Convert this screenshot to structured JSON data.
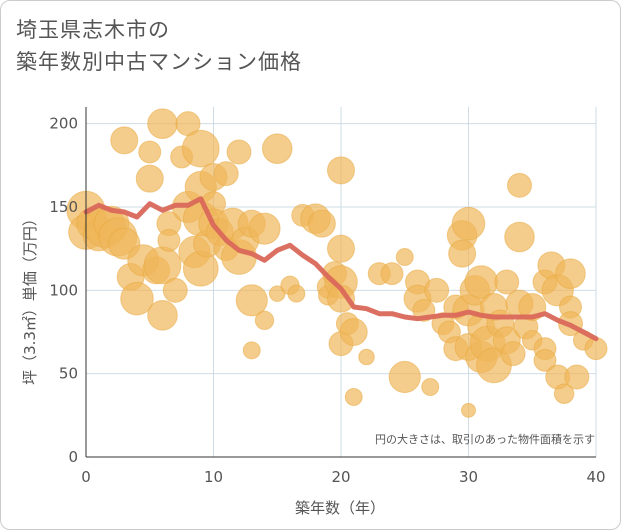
{
  "header": {
    "title_line1": "埼玉県志木市の",
    "title_line2": "築年数別中古マンション価格"
  },
  "colors": {
    "bubble": "#f0b75a",
    "bubble_stroke": "#e8a83c",
    "line": "#d9685a",
    "grid": "#cfdce6",
    "axis": "#333333"
  },
  "chart_data": {
    "type": "scatter",
    "xlabel": "築年数（年）",
    "ylabel": "坪（3.3㎡）単価（万円）",
    "xlim": [
      0,
      40
    ],
    "ylim": [
      0,
      210
    ],
    "x_ticks": [
      "0",
      "10",
      "20",
      "30",
      "40"
    ],
    "y_ticks": [
      "0",
      "50",
      "100",
      "150",
      "200"
    ],
    "x_tick_values": [
      0,
      10,
      20,
      30,
      40
    ],
    "y_tick_values": [
      0,
      50,
      100,
      150,
      200
    ],
    "grid": true,
    "note": "円の大きさは、取引のあった物件面積を示す",
    "bubbles": [
      {
        "x": 0,
        "y": 148,
        "s": 3
      },
      {
        "x": 0,
        "y": 135,
        "s": 2.5
      },
      {
        "x": 0.5,
        "y": 140,
        "s": 2
      },
      {
        "x": 1,
        "y": 133,
        "s": 2
      },
      {
        "x": 1.5,
        "y": 138,
        "s": 3.5
      },
      {
        "x": 2,
        "y": 140,
        "s": 2.5
      },
      {
        "x": 2.5,
        "y": 132,
        "s": 3
      },
      {
        "x": 3,
        "y": 190,
        "s": 1.5
      },
      {
        "x": 3,
        "y": 128,
        "s": 2
      },
      {
        "x": 3.5,
        "y": 108,
        "s": 1.5
      },
      {
        "x": 4,
        "y": 95,
        "s": 2.2
      },
      {
        "x": 4.5,
        "y": 118,
        "s": 2
      },
      {
        "x": 5,
        "y": 167,
        "s": 1.5
      },
      {
        "x": 5,
        "y": 183,
        "s": 1
      },
      {
        "x": 5.5,
        "y": 112,
        "s": 1.5
      },
      {
        "x": 6,
        "y": 115,
        "s": 2.8
      },
      {
        "x": 6,
        "y": 85,
        "s": 1.8
      },
      {
        "x": 6,
        "y": 200,
        "s": 1.8
      },
      {
        "x": 6.5,
        "y": 140,
        "s": 1.2
      },
      {
        "x": 6.5,
        "y": 130,
        "s": 1
      },
      {
        "x": 7,
        "y": 100,
        "s": 1.2
      },
      {
        "x": 7.5,
        "y": 180,
        "s": 1
      },
      {
        "x": 8,
        "y": 200,
        "s": 1.2
      },
      {
        "x": 8,
        "y": 150,
        "s": 2
      },
      {
        "x": 8.5,
        "y": 123,
        "s": 2
      },
      {
        "x": 9,
        "y": 185,
        "s": 2.8
      },
      {
        "x": 9,
        "y": 162,
        "s": 2
      },
      {
        "x": 9,
        "y": 143,
        "s": 2.5
      },
      {
        "x": 9,
        "y": 113,
        "s": 2.5
      },
      {
        "x": 9.5,
        "y": 128,
        "s": 1.5
      },
      {
        "x": 10,
        "y": 168,
        "s": 1.5
      },
      {
        "x": 10,
        "y": 152,
        "s": 1.2
      },
      {
        "x": 10,
        "y": 140,
        "s": 1.8
      },
      {
        "x": 10.5,
        "y": 135,
        "s": 1.5
      },
      {
        "x": 11,
        "y": 170,
        "s": 1.2
      },
      {
        "x": 11,
        "y": 125,
        "s": 1.2
      },
      {
        "x": 11.5,
        "y": 140,
        "s": 2
      },
      {
        "x": 12,
        "y": 183,
        "s": 1.2
      },
      {
        "x": 12,
        "y": 120,
        "s": 2.5
      },
      {
        "x": 12.5,
        "y": 130,
        "s": 1.5
      },
      {
        "x": 13,
        "y": 94,
        "s": 2
      },
      {
        "x": 13,
        "y": 140,
        "s": 1.5
      },
      {
        "x": 13,
        "y": 64,
        "s": 0.6
      },
      {
        "x": 14,
        "y": 137,
        "s": 2
      },
      {
        "x": 14,
        "y": 82,
        "s": 0.7
      },
      {
        "x": 15,
        "y": 185,
        "s": 1.8
      },
      {
        "x": 15,
        "y": 98,
        "s": 0.5
      },
      {
        "x": 16,
        "y": 103,
        "s": 0.7
      },
      {
        "x": 16.5,
        "y": 98,
        "s": 0.6
      },
      {
        "x": 17,
        "y": 145,
        "s": 1
      },
      {
        "x": 18,
        "y": 143,
        "s": 1.8
      },
      {
        "x": 18.5,
        "y": 140,
        "s": 1.5
      },
      {
        "x": 19,
        "y": 102,
        "s": 1
      },
      {
        "x": 19,
        "y": 97,
        "s": 0.8
      },
      {
        "x": 19.5,
        "y": 110,
        "s": 1.2
      },
      {
        "x": 20,
        "y": 172,
        "s": 1.5
      },
      {
        "x": 20,
        "y": 125,
        "s": 1.5
      },
      {
        "x": 20,
        "y": 105,
        "s": 2.2
      },
      {
        "x": 20,
        "y": 95,
        "s": 1.5
      },
      {
        "x": 20,
        "y": 68,
        "s": 1.2
      },
      {
        "x": 20.5,
        "y": 80,
        "s": 1
      },
      {
        "x": 21,
        "y": 75,
        "s": 1.5
      },
      {
        "x": 21,
        "y": 36,
        "s": 0.6
      },
      {
        "x": 22,
        "y": 60,
        "s": 0.5
      },
      {
        "x": 23,
        "y": 110,
        "s": 1
      },
      {
        "x": 24,
        "y": 110,
        "s": 1
      },
      {
        "x": 25,
        "y": 48,
        "s": 2
      },
      {
        "x": 25,
        "y": 120,
        "s": 0.6
      },
      {
        "x": 26,
        "y": 105,
        "s": 1.2
      },
      {
        "x": 26,
        "y": 95,
        "s": 1.5
      },
      {
        "x": 26.5,
        "y": 88,
        "s": 1
      },
      {
        "x": 27,
        "y": 42,
        "s": 0.6
      },
      {
        "x": 27.5,
        "y": 100,
        "s": 1.2
      },
      {
        "x": 28,
        "y": 80,
        "s": 1
      },
      {
        "x": 28.5,
        "y": 75,
        "s": 1
      },
      {
        "x": 29,
        "y": 65,
        "s": 1.2
      },
      {
        "x": 29,
        "y": 90,
        "s": 1.2
      },
      {
        "x": 29.5,
        "y": 133,
        "s": 1.8
      },
      {
        "x": 29.5,
        "y": 122,
        "s": 1.5
      },
      {
        "x": 30,
        "y": 140,
        "s": 2.2
      },
      {
        "x": 30,
        "y": 28,
        "s": 0.4
      },
      {
        "x": 30,
        "y": 88,
        "s": 2
      },
      {
        "x": 30,
        "y": 66,
        "s": 1.5
      },
      {
        "x": 30.5,
        "y": 100,
        "s": 1.8
      },
      {
        "x": 31,
        "y": 105,
        "s": 2.2
      },
      {
        "x": 31,
        "y": 78,
        "s": 1.5
      },
      {
        "x": 31,
        "y": 60,
        "s": 2
      },
      {
        "x": 31.5,
        "y": 68,
        "s": 2.5
      },
      {
        "x": 32,
        "y": 55,
        "s": 2.5
      },
      {
        "x": 32,
        "y": 90,
        "s": 1.5
      },
      {
        "x": 32.5,
        "y": 80,
        "s": 1.5
      },
      {
        "x": 33,
        "y": 105,
        "s": 1.2
      },
      {
        "x": 33,
        "y": 70,
        "s": 1.5
      },
      {
        "x": 33.5,
        "y": 62,
        "s": 1.2
      },
      {
        "x": 34,
        "y": 163,
        "s": 1.2
      },
      {
        "x": 34,
        "y": 132,
        "s": 1.8
      },
      {
        "x": 34,
        "y": 92,
        "s": 1.5
      },
      {
        "x": 34.5,
        "y": 78,
        "s": 1.2
      },
      {
        "x": 35,
        "y": 90,
        "s": 1.5
      },
      {
        "x": 35,
        "y": 70,
        "s": 0.8
      },
      {
        "x": 36,
        "y": 105,
        "s": 1.2
      },
      {
        "x": 36,
        "y": 65,
        "s": 1
      },
      {
        "x": 36,
        "y": 58,
        "s": 1
      },
      {
        "x": 36.5,
        "y": 115,
        "s": 1.5
      },
      {
        "x": 37,
        "y": 100,
        "s": 2
      },
      {
        "x": 37,
        "y": 48,
        "s": 1.2
      },
      {
        "x": 37.5,
        "y": 38,
        "s": 0.8
      },
      {
        "x": 38,
        "y": 110,
        "s": 1.8
      },
      {
        "x": 38,
        "y": 90,
        "s": 1
      },
      {
        "x": 38,
        "y": 80,
        "s": 1.2
      },
      {
        "x": 38.5,
        "y": 48,
        "s": 1.2
      },
      {
        "x": 39,
        "y": 70,
        "s": 0.8
      },
      {
        "x": 40,
        "y": 65,
        "s": 1
      }
    ],
    "series": [
      {
        "x": [
          0,
          1,
          2,
          3,
          4,
          5,
          6,
          7,
          8,
          9,
          10,
          11,
          12,
          13,
          14,
          15,
          16,
          17,
          18,
          19,
          20,
          21,
          22,
          23,
          24,
          25,
          26,
          27,
          28,
          29,
          30,
          31,
          32,
          33,
          34,
          35,
          36,
          37,
          38,
          39,
          40
        ],
        "values": [
          147,
          151,
          148,
          147,
          144,
          152,
          148,
          151,
          151,
          155,
          139,
          130,
          124,
          122,
          118,
          124,
          127,
          121,
          116,
          108,
          101,
          90,
          89,
          86,
          86,
          84,
          83,
          84,
          85,
          85,
          87,
          85,
          84,
          84,
          84,
          84,
          86,
          82,
          79,
          75,
          71
        ]
      }
    ]
  }
}
